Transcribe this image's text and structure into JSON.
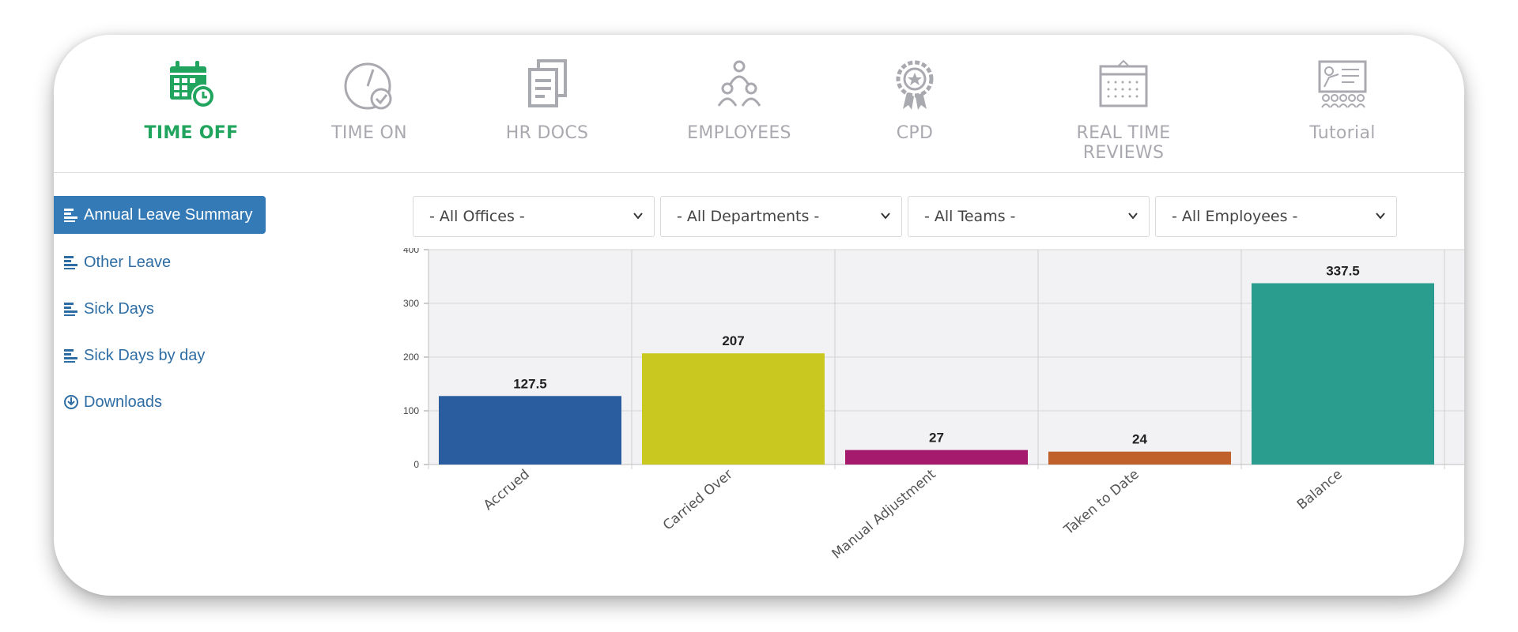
{
  "nav": {
    "items": [
      {
        "label": "TIME OFF",
        "icon": "calendar-clock-icon",
        "active": true
      },
      {
        "label": "TIME ON",
        "icon": "stopwatch-check-icon",
        "active": false
      },
      {
        "label": "HR DOCS",
        "icon": "documents-icon",
        "active": false
      },
      {
        "label": "EMPLOYEES",
        "icon": "people-icon",
        "active": false
      },
      {
        "label": "CPD",
        "icon": "award-badge-icon",
        "active": false
      },
      {
        "label": "REAL TIME REVIEWS",
        "icon": "calendar-grid-icon",
        "active": false
      },
      {
        "label": "Tutorial",
        "icon": "presentation-icon",
        "active": false
      }
    ],
    "active_color": "#21a55e",
    "inactive_color": "#a9a9b0"
  },
  "sidebar": {
    "items": [
      {
        "label": "Annual Leave Summary",
        "icon": "bar-list-icon",
        "active": true
      },
      {
        "label": "Other Leave",
        "icon": "bar-list-icon",
        "active": false
      },
      {
        "label": "Sick Days",
        "icon": "bar-list-icon",
        "active": false
      },
      {
        "label": "Sick Days by day",
        "icon": "bar-list-icon",
        "active": false
      },
      {
        "label": "Downloads",
        "icon": "download-circle-icon",
        "active": false
      }
    ]
  },
  "filters": {
    "offices": "- All Offices -",
    "departments": "- All Departments -",
    "teams": "- All Teams -",
    "employees": "- All Employees -"
  },
  "chart_data": {
    "type": "bar",
    "categories": [
      "Accrued",
      "Carried Over",
      "Manual Adjustment",
      "Taken to Date",
      "Balance"
    ],
    "values": [
      127.5,
      207,
      27,
      24,
      337.5
    ],
    "data_labels": [
      "127.5",
      "207",
      "27",
      "24",
      "337.5"
    ],
    "colors": [
      "#2a5d9f",
      "#c8c820",
      "#a61a6e",
      "#c0612b",
      "#2a9d8f"
    ],
    "ylim": [
      0,
      400
    ],
    "yticks": [
      "0",
      "100",
      "200",
      "300",
      "400"
    ],
    "grid": true,
    "title": "",
    "xlabel": "",
    "ylabel": ""
  }
}
